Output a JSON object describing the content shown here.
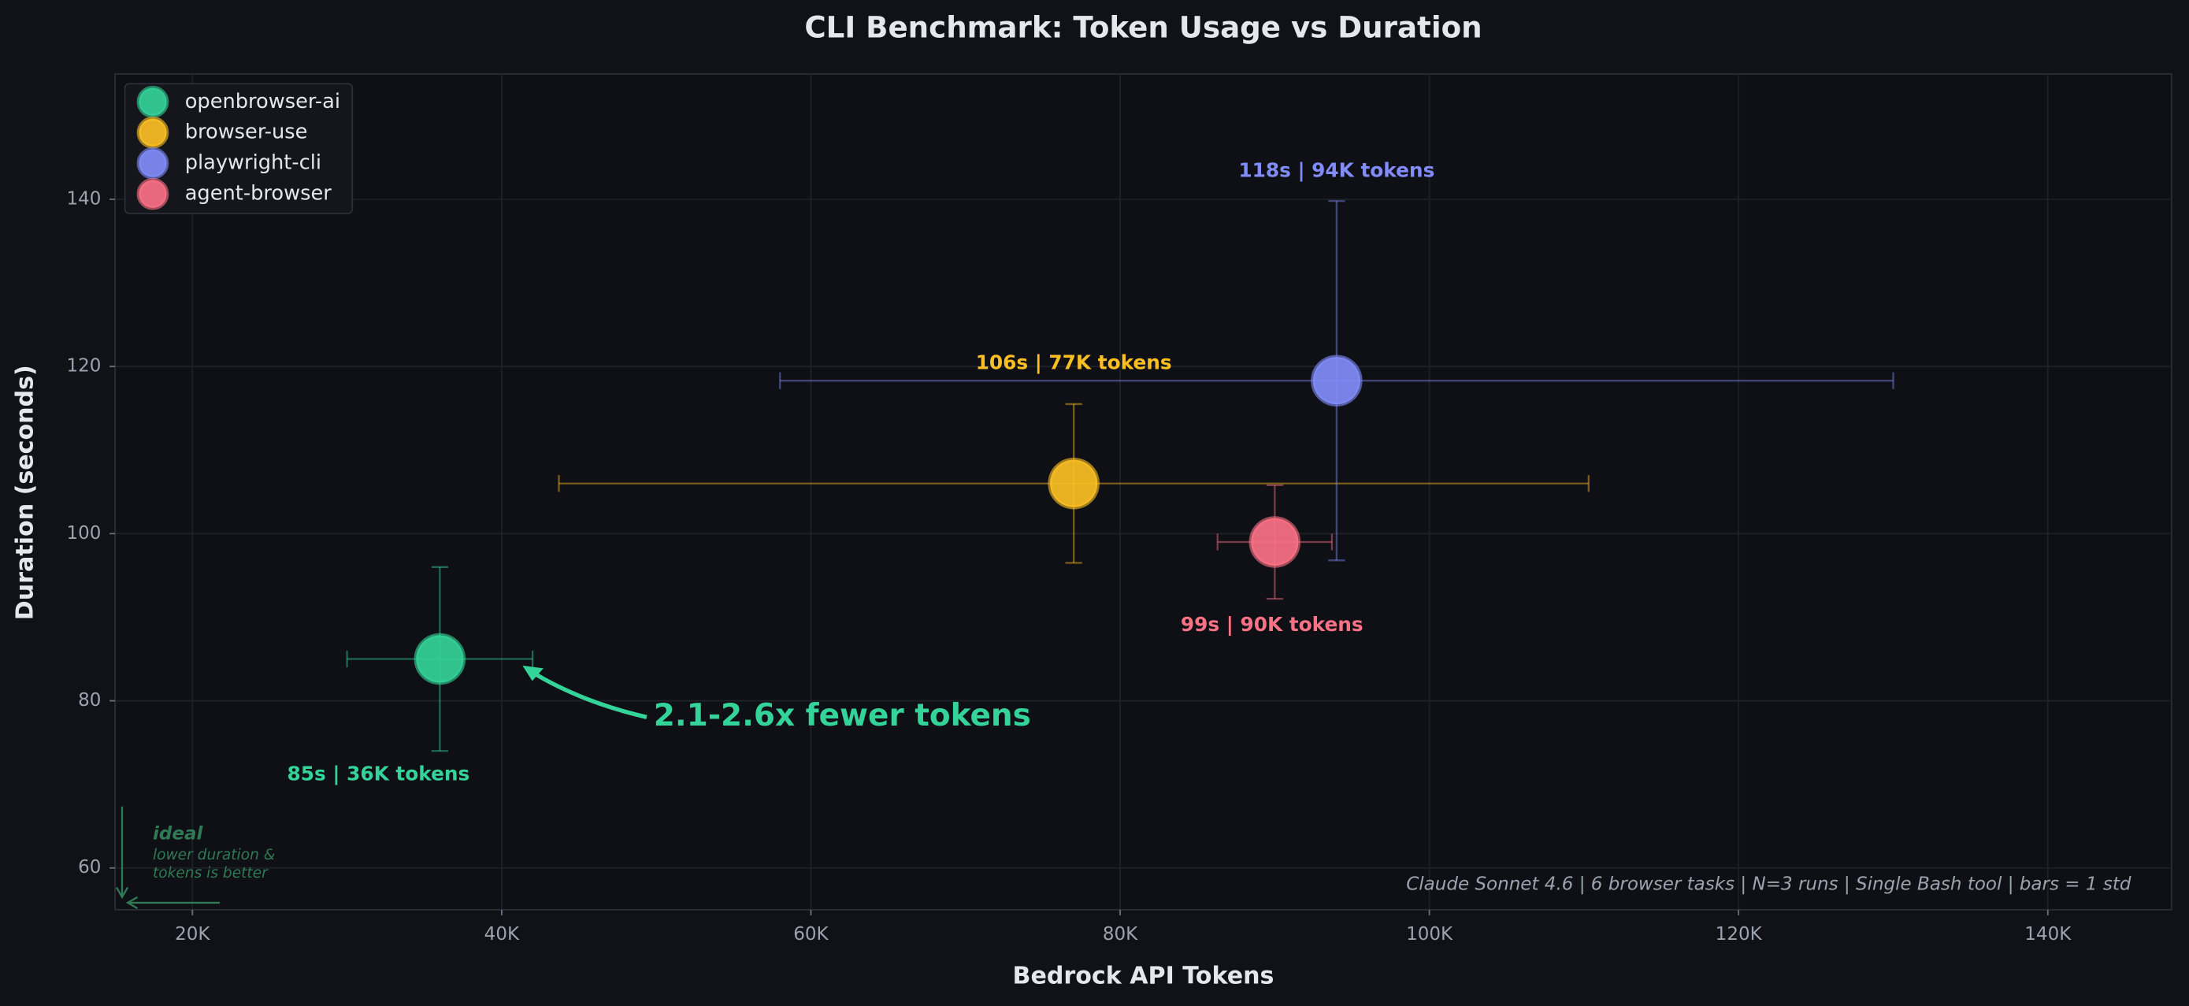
{
  "chart_data": {
    "type": "scatter",
    "title": "CLI Benchmark: Token Usage vs Duration",
    "x_label": "Bedrock API Tokens",
    "y_label": "Duration (seconds)",
    "xlim": [
      15000,
      148000
    ],
    "ylim": [
      55,
      155
    ],
    "xticks": [
      {
        "value": 20000,
        "label": "20K"
      },
      {
        "value": 40000,
        "label": "40K"
      },
      {
        "value": 60000,
        "label": "60K"
      },
      {
        "value": 80000,
        "label": "80K"
      },
      {
        "value": 100000,
        "label": "100K"
      },
      {
        "value": 120000,
        "label": "120K"
      },
      {
        "value": 140000,
        "label": "140K"
      }
    ],
    "yticks": [
      60,
      80,
      100,
      120,
      140
    ],
    "grid": true,
    "legend": "upper left",
    "series": [
      {
        "name": "openbrowser-ai",
        "color": "#34d399",
        "x": [
          36000
        ],
        "values": [
          85
        ],
        "x_err": [
          6000
        ],
        "y_err": [
          11
        ],
        "value_labels": [
          "85s  |  36K tokens"
        ]
      },
      {
        "name": "browser-use",
        "color": "#fbbf24",
        "x": [
          77000
        ],
        "values": [
          106
        ],
        "x_err": [
          33300
        ],
        "y_err": [
          9.5
        ],
        "value_labels": [
          "106s  |  77K tokens"
        ]
      },
      {
        "name": "playwright-cli",
        "color": "#818cf8",
        "x": [
          94000
        ],
        "values": [
          118.3
        ],
        "x_err": [
          36000
        ],
        "y_err": [
          21.5
        ],
        "value_labels": [
          "118s  |  94K tokens"
        ]
      },
      {
        "name": "agent-browser",
        "color": "#fb7185",
        "x": [
          90000
        ],
        "values": [
          99
        ],
        "x_err": [
          3700
        ],
        "y_err": [
          6.8
        ],
        "value_labels": [
          "99s  |  90K tokens"
        ]
      }
    ],
    "annotations": {
      "callout": "2.1-2.6x fewer tokens",
      "ideal": "ideal",
      "ideal_note": [
        "lower duration &",
        "tokens is better"
      ],
      "footnote": "Claude Sonnet 4.6  |  6 browser tasks  |  N=3 runs  |  Single Bash tool  |  bars = 1 std"
    }
  }
}
